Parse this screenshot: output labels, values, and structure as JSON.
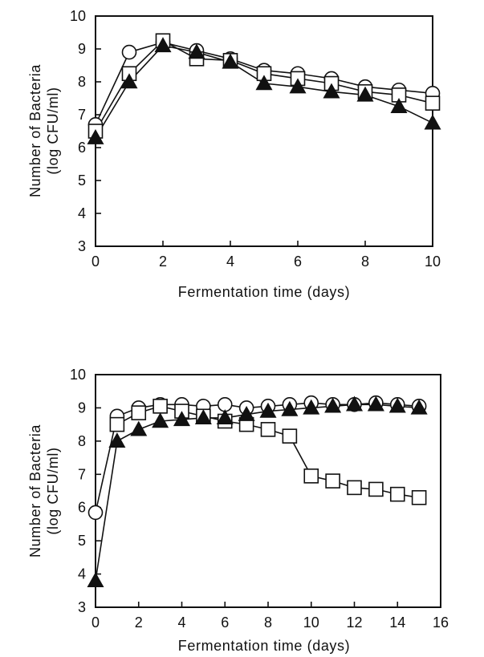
{
  "chart_data": [
    {
      "type": "line",
      "xlabel": "Fermentation time (days)",
      "ylabel_line1": "Number of Bacteria",
      "ylabel_line2": "(log CFU/ml)",
      "xlim": [
        0,
        10
      ],
      "ylim": [
        3,
        10
      ],
      "xticks": [
        0,
        2,
        4,
        6,
        8,
        10
      ],
      "yticks": [
        3,
        4,
        5,
        6,
        7,
        8,
        9,
        10
      ],
      "grid": false,
      "x": [
        0,
        1,
        2,
        3,
        4,
        5,
        6,
        7,
        8,
        9,
        10
      ],
      "series": [
        {
          "marker": "open-circle",
          "values": [
            6.7,
            8.9,
            9.2,
            8.95,
            8.7,
            8.35,
            8.25,
            8.1,
            7.85,
            7.75,
            7.65
          ]
        },
        {
          "marker": "filled-triangle",
          "values": [
            6.3,
            8.0,
            9.1,
            8.9,
            8.6,
            7.95,
            7.85,
            7.7,
            7.6,
            7.25,
            6.75
          ]
        },
        {
          "marker": "open-square",
          "values": [
            6.5,
            8.25,
            9.25,
            8.7,
            8.65,
            8.25,
            8.1,
            7.95,
            7.7,
            7.6,
            7.35
          ]
        }
      ]
    },
    {
      "type": "line",
      "xlabel": "Fermentation time (days)",
      "ylabel_line1": "Number of Bacteria",
      "ylabel_line2": "(log CFU/ml)",
      "xlim": [
        0,
        16
      ],
      "ylim": [
        3,
        10
      ],
      "xticks": [
        0,
        2,
        4,
        6,
        8,
        10,
        12,
        14,
        16
      ],
      "yticks": [
        3,
        4,
        5,
        6,
        7,
        8,
        9,
        10
      ],
      "grid": false,
      "x": [
        0,
        1,
        2,
        3,
        4,
        5,
        6,
        7,
        8,
        9,
        10,
        11,
        12,
        13,
        14,
        15
      ],
      "series": [
        {
          "marker": "open-circle",
          "values": [
            5.85,
            8.75,
            9.0,
            9.1,
            9.1,
            9.05,
            9.1,
            9.0,
            9.05,
            9.1,
            9.15,
            9.1,
            9.1,
            9.15,
            9.1,
            9.05
          ]
        },
        {
          "marker": "filled-triangle",
          "values": [
            3.8,
            8.0,
            8.35,
            8.6,
            8.65,
            8.7,
            8.7,
            8.8,
            8.9,
            8.95,
            9.0,
            9.05,
            9.1,
            9.1,
            9.05,
            9.0
          ]
        },
        {
          "marker": "open-square",
          "values": [
            null,
            8.5,
            8.85,
            9.05,
            8.9,
            8.75,
            8.6,
            8.5,
            8.35,
            8.15,
            6.95,
            6.8,
            6.6,
            6.55,
            6.4,
            6.3
          ]
        }
      ]
    }
  ]
}
